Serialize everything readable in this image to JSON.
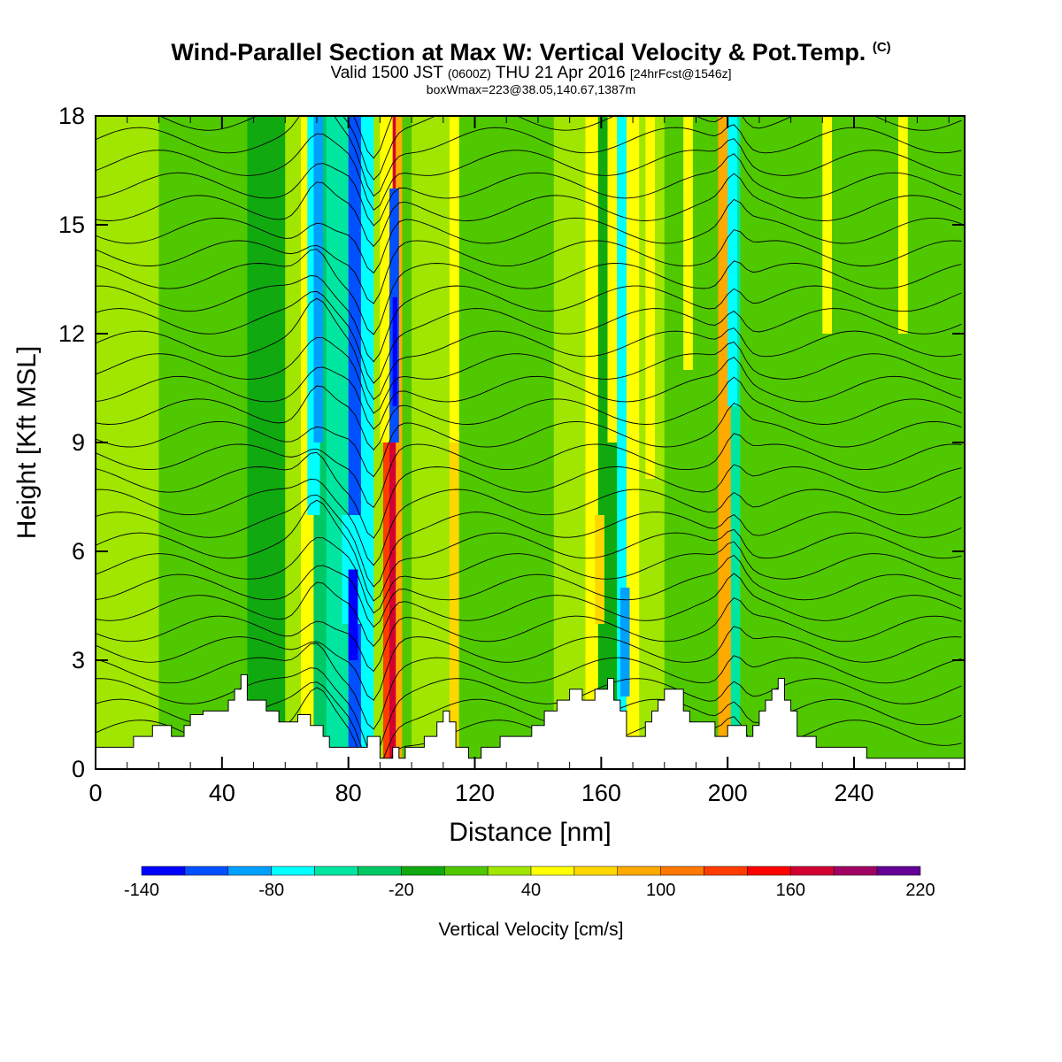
{
  "title": {
    "main": "Wind-Parallel Section at Max W: Vertical Velocity & Pot.Temp.",
    "copyright": "(C)",
    "valid_prefix": "Valid 1500 JST",
    "valid_utc": "(0600Z)",
    "valid_date": "THU 21 Apr 2016",
    "forecast": "[24hrFcst@1546z]",
    "box": "boxWmax=223@38.05,140.67,1387m"
  },
  "chart_data": {
    "type": "heatmap",
    "xlabel": "Distance [nm]",
    "ylabel": "Height [Kft MSL]",
    "xlim": [
      0,
      275
    ],
    "ylim": [
      0,
      18
    ],
    "x_ticks": [
      "0",
      "40",
      "80",
      "120",
      "160",
      "200",
      "240"
    ],
    "x_tick_values": [
      0,
      40,
      80,
      120,
      160,
      200,
      240
    ],
    "y_ticks": [
      "0",
      "3",
      "6",
      "9",
      "12",
      "15",
      "18"
    ],
    "y_tick_values": [
      0,
      3,
      6,
      9,
      12,
      15,
      18
    ],
    "colorbar": {
      "title": "Vertical Velocity [cm/s]",
      "labels": [
        "-140",
        "-80",
        "-20",
        "40",
        "100",
        "160",
        "220"
      ],
      "label_values": [
        -140,
        -80,
        -20,
        40,
        100,
        160,
        220
      ],
      "min": -140,
      "step": 20,
      "colors": [
        "#0000ff",
        "#0050ff",
        "#00a0ff",
        "#00ffff",
        "#00e6a0",
        "#00c864",
        "#10aa10",
        "#50c800",
        "#a0e600",
        "#ffff00",
        "#ffd700",
        "#ffaa00",
        "#ff7800",
        "#ff3c00",
        "#ff0000",
        "#d20032",
        "#a00064",
        "#640096"
      ]
    },
    "columns": [
      {
        "x": 0,
        "w": 20,
        "level": 8
      },
      {
        "x": 20,
        "w": 28,
        "level": 7
      },
      {
        "x": 48,
        "w": 12,
        "level": 6
      },
      {
        "x": 60,
        "w": 5,
        "level": 8
      },
      {
        "x": 65,
        "w": 4,
        "level": 9
      },
      {
        "x": 69,
        "w": 4,
        "level": 5
      },
      {
        "x": 73,
        "w": 7,
        "level": 4
      },
      {
        "x": 80,
        "w": 4,
        "level": 1
      },
      {
        "x": 84,
        "w": 4,
        "level": 3
      },
      {
        "x": 88,
        "w": 3,
        "level": 8
      },
      {
        "x": 91,
        "w": 2,
        "level": 13
      },
      {
        "x": 93,
        "w": 2,
        "level": 15
      },
      {
        "x": 95,
        "w": 2,
        "level": 11
      },
      {
        "x": 97,
        "w": 3,
        "level": 7
      },
      {
        "x": 100,
        "w": 12,
        "level": 8
      },
      {
        "x": 112,
        "w": 3,
        "level": 10
      },
      {
        "x": 115,
        "w": 30,
        "level": 7
      },
      {
        "x": 145,
        "w": 10,
        "level": 8
      },
      {
        "x": 155,
        "w": 4,
        "level": 9
      },
      {
        "x": 159,
        "w": 6,
        "level": 6
      },
      {
        "x": 165,
        "w": 3,
        "level": 3
      },
      {
        "x": 168,
        "w": 4,
        "level": 9
      },
      {
        "x": 172,
        "w": 8,
        "level": 8
      },
      {
        "x": 180,
        "w": 17,
        "level": 7
      },
      {
        "x": 197,
        "w": 4,
        "level": 11
      },
      {
        "x": 201,
        "w": 3,
        "level": 4
      },
      {
        "x": 204,
        "w": 71,
        "level": 7
      }
    ],
    "streaks": [
      {
        "x": 67,
        "w": 4,
        "y0": 7,
        "y1": 18,
        "level": 3
      },
      {
        "x": 69,
        "w": 3,
        "y0": 9,
        "y1": 18,
        "level": 2
      },
      {
        "x": 78,
        "w": 6,
        "y0": 4,
        "y1": 7,
        "level": 3
      },
      {
        "x": 80,
        "w": 3,
        "y0": 3,
        "y1": 5.5,
        "level": 0
      },
      {
        "x": 90,
        "w": 4,
        "y0": 9,
        "y1": 18,
        "level": 9
      },
      {
        "x": 93,
        "w": 3,
        "y0": 9,
        "y1": 16,
        "level": 1
      },
      {
        "x": 94,
        "w": 1.5,
        "y0": 10,
        "y1": 13,
        "level": 0
      },
      {
        "x": 112,
        "w": 3,
        "y0": 9,
        "y1": 18,
        "level": 9
      },
      {
        "x": 158,
        "w": 3,
        "y0": 4,
        "y1": 7,
        "level": 10
      },
      {
        "x": 162,
        "w": 3,
        "y0": 9,
        "y1": 18,
        "level": 9
      },
      {
        "x": 166,
        "w": 3,
        "y0": 2,
        "y1": 5,
        "level": 2
      },
      {
        "x": 174,
        "w": 3,
        "y0": 8,
        "y1": 18,
        "level": 9
      },
      {
        "x": 198,
        "w": 3,
        "y0": 3,
        "y1": 6,
        "level": 11
      },
      {
        "x": 200,
        "w": 3,
        "y0": 10,
        "y1": 18,
        "level": 3
      },
      {
        "x": 186,
        "w": 3,
        "y0": 11,
        "y1": 18,
        "level": 9
      },
      {
        "x": 230,
        "w": 3,
        "y0": 12,
        "y1": 18,
        "level": 9
      },
      {
        "x": 254,
        "w": 3,
        "y0": 12,
        "y1": 18,
        "level": 9
      }
    ],
    "terrain": [
      [
        0,
        0.6
      ],
      [
        12,
        0.6
      ],
      [
        12,
        0.9
      ],
      [
        18,
        0.9
      ],
      [
        18,
        1.2
      ],
      [
        24,
        1.2
      ],
      [
        24,
        0.9
      ],
      [
        28,
        0.9
      ],
      [
        28,
        1.2
      ],
      [
        30,
        1.2
      ],
      [
        30,
        1.5
      ],
      [
        34,
        1.5
      ],
      [
        34,
        1.6
      ],
      [
        42,
        1.6
      ],
      [
        42,
        1.9
      ],
      [
        44,
        1.9
      ],
      [
        44,
        2.2
      ],
      [
        46,
        2.2
      ],
      [
        46,
        2.6
      ],
      [
        48,
        2.6
      ],
      [
        48,
        1.9
      ],
      [
        54,
        1.9
      ],
      [
        54,
        1.6
      ],
      [
        58,
        1.6
      ],
      [
        58,
        1.3
      ],
      [
        64,
        1.3
      ],
      [
        64,
        1.5
      ],
      [
        68,
        1.5
      ],
      [
        68,
        1.2
      ],
      [
        72,
        1.2
      ],
      [
        72,
        0.9
      ],
      [
        74,
        0.9
      ],
      [
        74,
        0.6
      ],
      [
        86,
        0.6
      ],
      [
        86,
        0.9
      ],
      [
        90,
        0.9
      ],
      [
        90,
        0.3
      ],
      [
        94,
        0.3
      ],
      [
        94,
        0.6
      ],
      [
        96,
        0.6
      ],
      [
        96,
        0.3
      ],
      [
        98,
        0.3
      ],
      [
        98,
        0.6
      ],
      [
        104,
        0.6
      ],
      [
        104,
        0.9
      ],
      [
        108,
        0.9
      ],
      [
        108,
        1.3
      ],
      [
        110,
        1.3
      ],
      [
        110,
        1.6
      ],
      [
        112,
        1.6
      ],
      [
        112,
        1.3
      ],
      [
        114,
        1.3
      ],
      [
        114,
        0.6
      ],
      [
        118,
        0.6
      ],
      [
        118,
        0.3
      ],
      [
        122,
        0.3
      ],
      [
        122,
        0.6
      ],
      [
        128,
        0.6
      ],
      [
        128,
        0.9
      ],
      [
        138,
        0.9
      ],
      [
        138,
        1.2
      ],
      [
        142,
        1.2
      ],
      [
        142,
        1.6
      ],
      [
        146,
        1.6
      ],
      [
        146,
        1.9
      ],
      [
        150,
        1.9
      ],
      [
        150,
        2.2
      ],
      [
        154,
        2.2
      ],
      [
        154,
        1.9
      ],
      [
        158,
        1.9
      ],
      [
        158,
        2.2
      ],
      [
        162,
        2.2
      ],
      [
        162,
        2.5
      ],
      [
        164,
        2.5
      ],
      [
        164,
        1.9
      ],
      [
        166,
        1.9
      ],
      [
        166,
        1.6
      ],
      [
        168,
        1.6
      ],
      [
        168,
        0.9
      ],
      [
        174,
        0.9
      ],
      [
        174,
        1.3
      ],
      [
        176,
        1.3
      ],
      [
        176,
        1.6
      ],
      [
        178,
        1.6
      ],
      [
        178,
        1.9
      ],
      [
        180,
        1.9
      ],
      [
        180,
        2.2
      ],
      [
        186,
        2.2
      ],
      [
        186,
        1.6
      ],
      [
        188,
        1.6
      ],
      [
        188,
        1.3
      ],
      [
        196,
        1.3
      ],
      [
        196,
        0.9
      ],
      [
        200,
        0.9
      ],
      [
        200,
        1.2
      ],
      [
        206,
        1.2
      ],
      [
        206,
        0.9
      ],
      [
        208,
        0.9
      ],
      [
        208,
        1.2
      ],
      [
        210,
        1.2
      ],
      [
        210,
        1.6
      ],
      [
        212,
        1.6
      ],
      [
        212,
        1.9
      ],
      [
        214,
        1.9
      ],
      [
        214,
        2.2
      ],
      [
        216,
        2.2
      ],
      [
        216,
        2.5
      ],
      [
        218,
        2.5
      ],
      [
        218,
        1.9
      ],
      [
        220,
        1.9
      ],
      [
        220,
        1.6
      ],
      [
        222,
        1.6
      ],
      [
        222,
        0.9
      ],
      [
        228,
        0.9
      ],
      [
        228,
        0.6
      ],
      [
        244,
        0.6
      ],
      [
        244,
        0.3
      ],
      [
        275,
        0.3
      ]
    ],
    "isentropes": {
      "count": 30,
      "note": "potential temperature contours, black"
    }
  }
}
